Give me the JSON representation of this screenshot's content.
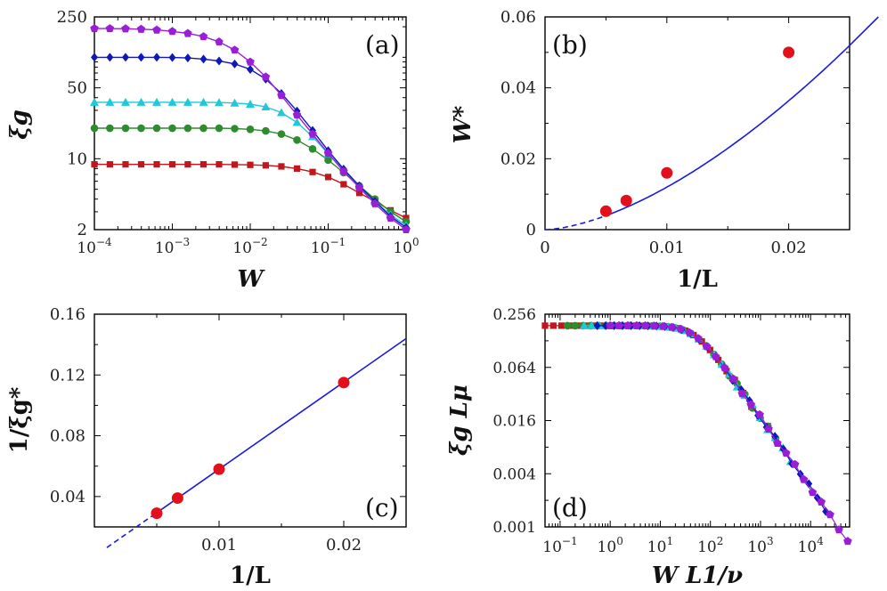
{
  "colors": {
    "L50": "#c0161d",
    "L100": "#2e8b2e",
    "L150": "#20c8d8",
    "L200": "#1018b8",
    "L300": "#9a1ed8",
    "fit": "#1a1ae0",
    "points": "#e3101c"
  },
  "chart_data": [
    {
      "type": "line",
      "panel": "(a)",
      "xscale": "log",
      "yscale": "log",
      "xlim": [
        0.0001,
        1
      ],
      "ylim": [
        2,
        250
      ],
      "xlabel": "W",
      "ylabel": "ξg",
      "xticks": [
        "10-4",
        "10-3",
        "10-2",
        "10-1",
        "100"
      ],
      "yticks": [
        "250",
        "50",
        "10",
        "2"
      ],
      "series": [
        {
          "color_key": "L50",
          "marker": "square",
          "x": [
            0.0001,
            0.000158,
            0.000251,
            0.000398,
            0.000631,
            0.001,
            0.00158,
            0.00251,
            0.00398,
            0.00631,
            0.01,
            0.0158,
            0.0251,
            0.0398,
            0.0631,
            0.1,
            0.158,
            0.251,
            0.398,
            0.631,
            1
          ],
          "y": [
            8.8,
            8.8,
            8.8,
            8.8,
            8.8,
            8.8,
            8.8,
            8.8,
            8.8,
            8.75,
            8.7,
            8.6,
            8.4,
            8.0,
            7.4,
            6.6,
            5.6,
            4.6,
            3.8,
            3.1,
            2.6
          ]
        },
        {
          "color_key": "L100",
          "marker": "circle",
          "x": [
            0.0001,
            0.000158,
            0.000251,
            0.000398,
            0.000631,
            0.001,
            0.00158,
            0.00251,
            0.00398,
            0.00631,
            0.01,
            0.0158,
            0.0251,
            0.0398,
            0.0631,
            0.1,
            0.158,
            0.251,
            0.398,
            0.631,
            1
          ],
          "y": [
            20,
            20,
            20,
            20,
            20,
            20,
            20,
            20,
            20,
            19.8,
            19.5,
            18.8,
            17.5,
            15.3,
            12.5,
            9.7,
            7.3,
            5.4,
            4.0,
            3.0,
            2.4
          ]
        },
        {
          "color_key": "L150",
          "marker": "triangle",
          "x": [
            0.0001,
            0.000158,
            0.000251,
            0.000398,
            0.000631,
            0.001,
            0.00158,
            0.00251,
            0.00398,
            0.00631,
            0.01,
            0.0158,
            0.0251,
            0.0398,
            0.0631,
            0.1,
            0.158,
            0.251,
            0.398,
            0.631,
            1
          ],
          "y": [
            36,
            36,
            36,
            36,
            36,
            36,
            36,
            36,
            35.8,
            35.4,
            34.5,
            32.5,
            28.5,
            22.8,
            16.5,
            11.2,
            7.7,
            5.4,
            3.8,
            2.8,
            2.2
          ]
        },
        {
          "color_key": "L200",
          "marker": "diamond",
          "x": [
            0.0001,
            0.000158,
            0.000251,
            0.000398,
            0.000631,
            0.001,
            0.00158,
            0.00251,
            0.00398,
            0.00631,
            0.01,
            0.0158,
            0.0251,
            0.0398,
            0.0631,
            0.1,
            0.158,
            0.251,
            0.398,
            0.631,
            1
          ],
          "y": [
            100,
            100,
            100,
            100,
            100,
            99.5,
            98.5,
            96,
            92,
            86,
            76,
            61,
            44,
            29.5,
            19,
            12,
            7.9,
            5.4,
            3.8,
            2.7,
            2.1
          ]
        },
        {
          "color_key": "L300",
          "marker": "pentagon",
          "x": [
            0.0001,
            0.000158,
            0.000251,
            0.000398,
            0.000631,
            0.001,
            0.00158,
            0.00251,
            0.00398,
            0.00631,
            0.01,
            0.0158,
            0.0251,
            0.0398,
            0.0631,
            0.1,
            0.158,
            0.251,
            0.398,
            0.631,
            1
          ],
          "y": [
            192,
            192,
            191,
            189,
            186,
            180,
            172,
            160,
            142,
            118,
            90,
            64,
            42,
            27,
            17.5,
            11.3,
            7.5,
            5.2,
            3.6,
            2.6,
            2.0
          ]
        }
      ]
    },
    {
      "type": "scatter",
      "panel": "(b)",
      "xlim": [
        0,
        0.025
      ],
      "ylim": [
        0,
        0.06
      ],
      "xlabel": "1/L",
      "ylabel": "W*",
      "xticks": [
        "0",
        "0.01",
        "0.02"
      ],
      "yticks": [
        "0",
        "0.02",
        "0.04",
        "0.06"
      ],
      "points": {
        "x": [
          0.005,
          0.00667,
          0.01,
          0.02
        ],
        "y": [
          0.0052,
          0.0082,
          0.016,
          0.05
        ]
      },
      "fit": {
        "form": "a*x^b",
        "a": 19.0,
        "b": 1.6,
        "solid_from": 0.005,
        "dashed_from": 0.0
      }
    },
    {
      "type": "scatter",
      "panel": "(c)",
      "xlim": [
        0,
        0.025
      ],
      "ylim": [
        0.02,
        0.16
      ],
      "xlabel": "1/L",
      "ylabel": "1/ξg*",
      "xticks": [
        "0.01",
        "0.02"
      ],
      "yticks": [
        "0.04",
        "0.08",
        "0.12",
        "0.16"
      ],
      "points": {
        "x": [
          0.005,
          0.00667,
          0.01,
          0.02
        ],
        "y": [
          0.029,
          0.039,
          0.058,
          0.115
        ]
      },
      "fit": {
        "form": "a+b*x",
        "a": 0.0007,
        "b": 5.73,
        "solid_from": 0.005,
        "dashed_from": 0.001
      }
    },
    {
      "type": "scatter",
      "panel": "(d)",
      "xscale": "log",
      "yscale": "log",
      "xlim": [
        0.05,
        60000
      ],
      "ylim": [
        0.001,
        0.256
      ],
      "xlabel": "W L1/ν",
      "ylabel": "ξg Lμ",
      "xticks": [
        "10-1",
        "100",
        "101",
        "102",
        "103",
        "104"
      ],
      "yticks": [
        "0.256",
        "0.064",
        "0.016",
        "0.004",
        "0.001"
      ],
      "collapse": {
        "plateau": 0.19,
        "knee": 50,
        "slope": -0.8
      },
      "series": [
        {
          "color_key": "L50",
          "marker": "square",
          "xmin": 0.05,
          "xmax": 1400
        },
        {
          "color_key": "L100",
          "marker": "circle",
          "xmin": 0.14,
          "xmax": 2000
        },
        {
          "color_key": "L150",
          "marker": "triangle",
          "xmin": 0.3,
          "xmax": 4000
        },
        {
          "color_key": "L200",
          "marker": "diamond",
          "xmin": 0.55,
          "xmax": 20000
        },
        {
          "color_key": "L300",
          "marker": "pentagon",
          "xmin": 1.0,
          "xmax": 55000
        }
      ]
    }
  ]
}
